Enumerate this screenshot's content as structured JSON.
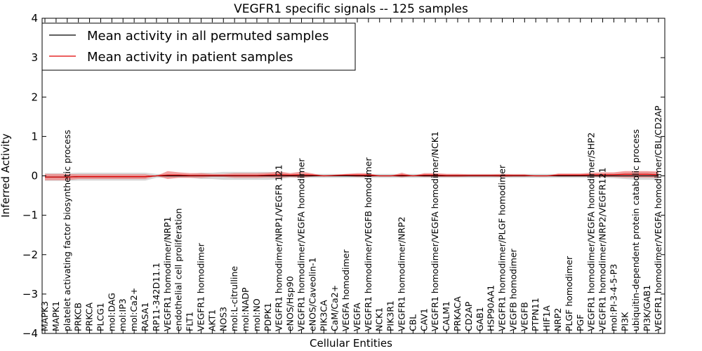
{
  "chart_data": {
    "type": "line",
    "title": "VEGFR1 specific signals -- 125 samples",
    "xlabel": "Cellular Entities",
    "ylabel": "Inferred Activity",
    "ylim": [
      -4,
      4
    ],
    "yticks": [
      "−4",
      "−3",
      "−2",
      "−1",
      "0",
      "1",
      "2",
      "3",
      "4"
    ],
    "legend_position": "top-left",
    "grid": false,
    "categories": [
      "MAPK3",
      "MAPK1",
      "platelet activating factor biosynthetic process",
      "PRKCB",
      "PRKCA",
      "PLCG1",
      "mol:DAG",
      "mol:IP3",
      "mol:Ca2+",
      "RASA1",
      "RP11-342D11.1",
      "VEGFR1 homodimer/NRP1",
      "endothelial cell proliferation",
      "FLT1",
      "VEGFR1 homodimer",
      "AKT1",
      "NOS3",
      "mol:L-citrulline",
      "mol:NADP",
      "mol:NO",
      "PDPK1",
      "VEGFR1 homodimer/NRP1/VEGFR 121",
      "eNOS/Hsp90",
      "VEGFR1 homodimer/VEGFA homodimer",
      "eNOS/Caveolin-1",
      "PIK3CA",
      "CaM/Ca2+",
      "VEGFA homodimer",
      "VEGFA",
      "VEGFR1 homodimer/VEGFB homodimer",
      "NCK1",
      "PIK3R1",
      "VEGFR1 homodimer/NRP2",
      "CBL",
      "CAV1",
      "VEGFR1 homodimer/VEGFA homodimer/NCK1",
      "CALM1",
      "PRKACA",
      "CD2AP",
      "GAB1",
      "HSP90AA1",
      "VEGFR1 homodimer/PLGF homodimer",
      "VEGFB homodimer",
      "VEGFB",
      "PTPN11",
      "HIF1A",
      "NRP2",
      "PLGF homodimer",
      "PGF",
      "VEGFR1 homodimer/VEGFA homodimer/SHP2",
      "VEGFR1 homodimer/NRP2/VEGFR121",
      "mol:PI-3-4-5-P3",
      "PI3K",
      "ubiquitin-dependent protein catabolic process",
      "PI3K/GAB1",
      "VEGFR1 homodimer/VEGFA homodimer/CBL/CD2AP"
    ],
    "series": [
      {
        "name": "Mean activity in all permuted samples",
        "color": "#000000",
        "values": [
          -0.03,
          -0.03,
          -0.03,
          -0.02,
          -0.02,
          -0.02,
          -0.02,
          -0.02,
          -0.02,
          -0.02,
          0.0,
          0.0,
          0.0,
          0.0,
          0.0,
          0.0,
          0.0,
          0.0,
          0.0,
          0.0,
          0.0,
          0.0,
          0.0,
          0.0,
          0.0,
          0.0,
          0.0,
          0.0,
          0.0,
          0.0,
          0.0,
          0.0,
          0.0,
          0.0,
          0.0,
          0.0,
          0.0,
          0.0,
          0.0,
          0.0,
          0.0,
          0.0,
          0.0,
          0.0,
          0.0,
          0.0,
          0.0,
          0.0,
          0.0,
          0.0,
          0.0,
          0.0,
          0.0,
          0.0,
          0.0,
          0.0
        ],
        "std": [
          0.1,
          0.1,
          0.1,
          0.1,
          0.1,
          0.1,
          0.1,
          0.1,
          0.1,
          0.1,
          0.05,
          0.05,
          0.05,
          0.05,
          0.08,
          0.08,
          0.1,
          0.1,
          0.1,
          0.1,
          0.1,
          0.08,
          0.05,
          0.05,
          0.05,
          0.05,
          0.05,
          0.05,
          0.05,
          0.05,
          0.05,
          0.05,
          0.05,
          0.05,
          0.05,
          0.05,
          0.05,
          0.05,
          0.05,
          0.05,
          0.05,
          0.05,
          0.05,
          0.05,
          0.05,
          0.05,
          0.05,
          0.05,
          0.05,
          0.05,
          0.05,
          0.06,
          0.08,
          0.1,
          0.1,
          0.1
        ],
        "band_color": "#d8d8d8"
      },
      {
        "name": "Mean activity in patient samples",
        "color": "#e00000",
        "values": [
          -0.03,
          -0.03,
          -0.03,
          -0.02,
          -0.02,
          -0.02,
          -0.02,
          -0.02,
          -0.02,
          -0.02,
          0.0,
          0.02,
          0.02,
          0.01,
          0.01,
          0.01,
          0.01,
          0.01,
          0.01,
          0.01,
          0.02,
          0.03,
          0.02,
          0.03,
          0.02,
          0.0,
          0.01,
          0.02,
          0.02,
          0.02,
          0.0,
          0.0,
          0.02,
          0.0,
          0.02,
          0.02,
          0.01,
          0.01,
          0.01,
          0.01,
          0.01,
          0.01,
          0.01,
          0.01,
          0.0,
          0.0,
          0.02,
          0.02,
          0.02,
          0.03,
          0.03,
          0.03,
          0.04,
          0.04,
          0.04,
          0.03
        ],
        "std": [
          0.08,
          0.08,
          0.08,
          0.06,
          0.06,
          0.06,
          0.06,
          0.06,
          0.06,
          0.06,
          0.0,
          0.1,
          0.07,
          0.06,
          0.06,
          0.04,
          0.04,
          0.06,
          0.06,
          0.06,
          0.06,
          0.08,
          0.05,
          0.08,
          0.04,
          0.0,
          0.02,
          0.03,
          0.05,
          0.05,
          0.0,
          0.0,
          0.06,
          0.0,
          0.05,
          0.05,
          0.04,
          0.04,
          0.03,
          0.03,
          0.03,
          0.04,
          0.03,
          0.03,
          0.0,
          0.0,
          0.04,
          0.04,
          0.04,
          0.05,
          0.06,
          0.06,
          0.08,
          0.08,
          0.08,
          0.08
        ],
        "band_color": "#f08080"
      }
    ]
  }
}
